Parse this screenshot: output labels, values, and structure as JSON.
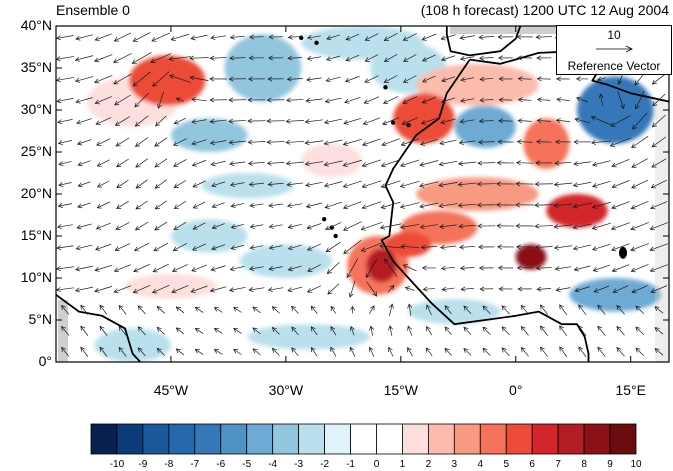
{
  "title": {
    "left": "Ensemble 0",
    "right": "(108 h forecast) 1200 UTC 12 Aug 2004"
  },
  "map": {
    "lat_labels": [
      "40°N",
      "35°N",
      "30°N",
      "25°N",
      "20°N",
      "15°N",
      "10°N",
      "5°N",
      "0°"
    ],
    "lon_labels": [
      "45°W",
      "30°W",
      "15°W",
      "0°",
      "15°E"
    ],
    "lon_range": [
      -60,
      20
    ],
    "lat_range": [
      0,
      40
    ]
  },
  "reference_vector": {
    "magnitude": "10",
    "label": "Reference Vector"
  },
  "colorbar": {
    "labels": [
      "-10",
      "-9",
      "-8",
      "-7",
      "-6",
      "-5",
      "-4",
      "-3",
      "-2",
      "-1",
      "0",
      "1",
      "2",
      "3",
      "4",
      "5",
      "6",
      "7",
      "8",
      "9",
      "10"
    ],
    "colors": [
      "#08204f",
      "#0b3b78",
      "#1a5a9c",
      "#2668ad",
      "#3677b8",
      "#4f92c6",
      "#6eaad4",
      "#92c6de",
      "#b9e0ec",
      "#e1f3fa",
      "#ffffff",
      "#ffffff",
      "#fde0dd",
      "#fbbcae",
      "#f89a82",
      "#f4735a",
      "#ec4b38",
      "#d2262a",
      "#b31e24",
      "#8c1017",
      "#6a0b0e"
    ]
  },
  "anomalies": [
    {
      "lon": -45.5,
      "lat": 33.5,
      "rx": 5,
      "ry": 3,
      "value": 6
    },
    {
      "lon": -50,
      "lat": 31,
      "rx": 6,
      "ry": 3,
      "value": 2
    },
    {
      "lon": -33,
      "lat": 35,
      "rx": 5,
      "ry": 4,
      "value": -3
    },
    {
      "lon": -20,
      "lat": 38,
      "rx": 8,
      "ry": 2,
      "value": -2
    },
    {
      "lon": -14,
      "lat": 35,
      "rx": 5,
      "ry": 3,
      "value": -2
    },
    {
      "lon": -5,
      "lat": 33,
      "rx": 8,
      "ry": 2.5,
      "value": 3
    },
    {
      "lon": -12,
      "lat": 29,
      "rx": 4,
      "ry": 3,
      "value": 6
    },
    {
      "lon": -4,
      "lat": 28,
      "rx": 4,
      "ry": 2.5,
      "value": -4
    },
    {
      "lon": 4,
      "lat": 26,
      "rx": 3,
      "ry": 3,
      "value": 5
    },
    {
      "lon": 13,
      "lat": 30,
      "rx": 5,
      "ry": 4,
      "value": -6
    },
    {
      "lon": 13,
      "lat": 30,
      "rx": 2.5,
      "ry": 2,
      "value": -3
    },
    {
      "lon": -40,
      "lat": 27,
      "rx": 5,
      "ry": 2,
      "value": -3
    },
    {
      "lon": -35,
      "lat": 21,
      "rx": 6,
      "ry": 1.5,
      "value": -2
    },
    {
      "lon": -24,
      "lat": 24,
      "rx": 4,
      "ry": 2,
      "value": 2
    },
    {
      "lon": -5,
      "lat": 20,
      "rx": 8,
      "ry": 2,
      "value": 4
    },
    {
      "lon": -10,
      "lat": 16,
      "rx": 5,
      "ry": 2,
      "value": 5
    },
    {
      "lon": 8,
      "lat": 18,
      "rx": 4,
      "ry": 2,
      "value": 7
    },
    {
      "lon": 2,
      "lat": 12.5,
      "rx": 2,
      "ry": 1.5,
      "value": 9
    },
    {
      "lon": -18,
      "lat": 11.5,
      "rx": 4,
      "ry": 3.5,
      "value": 5
    },
    {
      "lon": -17.5,
      "lat": 11.5,
      "rx": 2,
      "ry": 2,
      "value": 8
    },
    {
      "lon": -14,
      "lat": 14,
      "rx": 3,
      "ry": 1.5,
      "value": 6
    },
    {
      "lon": -40,
      "lat": 15,
      "rx": 5,
      "ry": 2,
      "value": -2
    },
    {
      "lon": -30,
      "lat": 12,
      "rx": 6,
      "ry": 2,
      "value": -2
    },
    {
      "lon": -45,
      "lat": 9,
      "rx": 6,
      "ry": 1.5,
      "value": 2
    },
    {
      "lon": -50,
      "lat": 2,
      "rx": 5,
      "ry": 2,
      "value": -2
    },
    {
      "lon": 13,
      "lat": 8,
      "rx": 6,
      "ry": 2,
      "value": -4
    },
    {
      "lon": -8,
      "lat": 6,
      "rx": 6,
      "ry": 1.5,
      "value": -2
    },
    {
      "lon": -27,
      "lat": 3,
      "rx": 8,
      "ry": 1.5,
      "value": -2
    }
  ],
  "wind_field": {
    "grid_lon_step": 2.5,
    "grid_lat_step": 2.5,
    "vortices": [
      {
        "lon": -18,
        "lat": 11,
        "strength": 8,
        "sign": 1
      },
      {
        "lon": 13,
        "lat": 30,
        "strength": 6,
        "sign": -1
      },
      {
        "lon": -45,
        "lat": 33,
        "strength": 5,
        "sign": 1
      }
    ],
    "background": {
      "u": -7,
      "v": -2
    }
  },
  "coastlines": {
    "africa": [
      [
        -6,
        36
      ],
      [
        -9,
        32
      ],
      [
        -10,
        29
      ],
      [
        -13,
        27
      ],
      [
        -16,
        23
      ],
      [
        -17,
        21
      ],
      [
        -16,
        19
      ],
      [
        -16.5,
        15
      ],
      [
        -17.5,
        14.5
      ],
      [
        -16,
        12
      ],
      [
        -15,
        11
      ],
      [
        -13,
        9
      ],
      [
        -11,
        7
      ],
      [
        -8,
        4.5
      ],
      [
        -4,
        5
      ],
      [
        0,
        5.5
      ],
      [
        3,
        6
      ],
      [
        6,
        4.5
      ],
      [
        8,
        4.5
      ],
      [
        9,
        3
      ],
      [
        9.5,
        1
      ],
      [
        9.5,
        0
      ]
    ],
    "south_america": [
      [
        -60,
        8
      ],
      [
        -57,
        6
      ],
      [
        -54,
        5.5
      ],
      [
        -51,
        4
      ],
      [
        -50,
        1
      ],
      [
        -49,
        0
      ]
    ],
    "iberia": [
      [
        -9,
        43
      ],
      [
        -9,
        39
      ],
      [
        -8.5,
        37
      ],
      [
        -6,
        36.5
      ],
      [
        -2,
        37
      ],
      [
        0,
        38.5
      ],
      [
        1,
        41
      ],
      [
        3,
        42
      ]
    ],
    "med_africa": [
      [
        -6,
        36
      ],
      [
        -2,
        35.5
      ],
      [
        3,
        36.8
      ],
      [
        8,
        37
      ],
      [
        10,
        37
      ],
      [
        11,
        35
      ],
      [
        10,
        33.5
      ],
      [
        12,
        33
      ],
      [
        15,
        32
      ],
      [
        20,
        31
      ]
    ]
  },
  "islands": [
    {
      "lon": -17,
      "lat": 32.7
    },
    {
      "lon": -16,
      "lat": 28.5
    },
    {
      "lon": -14,
      "lat": 28.2
    },
    {
      "lon": -24,
      "lat": 16
    },
    {
      "lon": -23.5,
      "lat": 15
    },
    {
      "lon": -25,
      "lat": 17
    },
    {
      "lon": -28,
      "lat": 38.6
    },
    {
      "lon": -26,
      "lat": 38
    }
  ],
  "lake": {
    "lon": 14,
    "lat": 13
  }
}
